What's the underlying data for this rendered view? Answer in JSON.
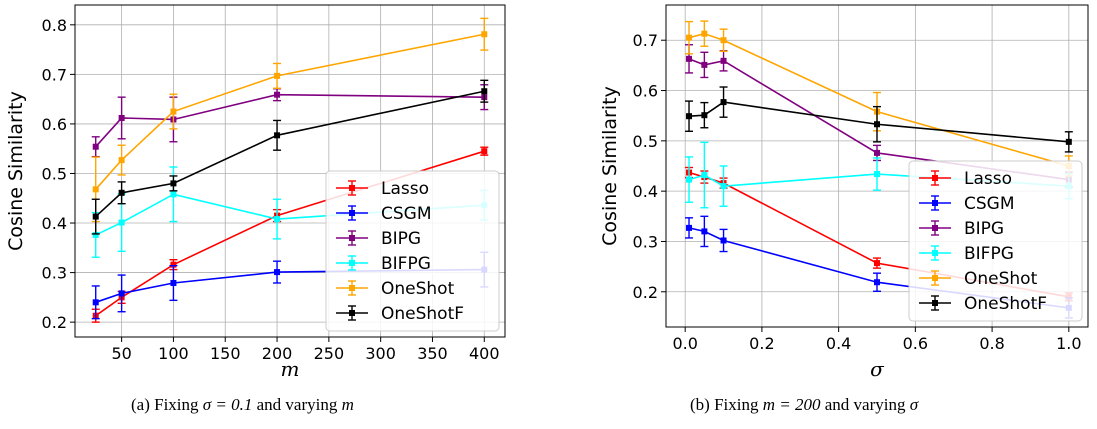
{
  "chart_data": [
    {
      "type": "line",
      "xlabel": "m",
      "ylabel": "Cosine Similarity",
      "xlim": [
        5,
        420
      ],
      "ylim": [
        0.17,
        0.84
      ],
      "xticks": [
        50,
        100,
        150,
        200,
        250,
        300,
        350,
        400
      ],
      "yticks": [
        0.2,
        0.3,
        0.4,
        0.5,
        0.6,
        0.7,
        0.8
      ],
      "xtick_labels": [
        "50",
        "100",
        "150",
        "200",
        "250",
        "300",
        "350",
        "400"
      ],
      "ytick_labels": [
        "0.2",
        "0.3",
        "0.4",
        "0.5",
        "0.6",
        "0.7",
        "0.8"
      ],
      "grid": true,
      "legend_position": "lower-right",
      "x": [
        25,
        50,
        100,
        200,
        400
      ],
      "series": [
        {
          "name": "Lasso",
          "color": "#ff0000",
          "values": [
            0.213,
            0.25,
            0.316,
            0.415,
            0.545
          ],
          "err": [
            0.013,
            0.012,
            0.01,
            0.012,
            0.008
          ]
        },
        {
          "name": "CSGM",
          "color": "#0000ff",
          "values": [
            0.24,
            0.258,
            0.279,
            0.301,
            0.306
          ],
          "err": [
            0.033,
            0.037,
            0.035,
            0.022,
            0.035
          ]
        },
        {
          "name": "BIPG",
          "color": "#800080",
          "values": [
            0.554,
            0.612,
            0.609,
            0.659,
            0.654
          ],
          "err": [
            0.02,
            0.042,
            0.045,
            0.012,
            0.025
          ]
        },
        {
          "name": "BIFPG",
          "color": "#00ffff",
          "values": [
            0.376,
            0.401,
            0.458,
            0.408,
            0.436
          ],
          "err": [
            0.045,
            0.058,
            0.055,
            0.04,
            0.03
          ]
        },
        {
          "name": "OneShot",
          "color": "#ffa500",
          "values": [
            0.468,
            0.527,
            0.625,
            0.697,
            0.781
          ],
          "err": [
            0.065,
            0.03,
            0.035,
            0.025,
            0.032
          ]
        },
        {
          "name": "OneShotF",
          "color": "#000000",
          "values": [
            0.413,
            0.461,
            0.48,
            0.577,
            0.666
          ],
          "err": [
            0.035,
            0.022,
            0.015,
            0.03,
            0.022
          ]
        }
      ]
    },
    {
      "type": "line",
      "xlabel": "σ",
      "ylabel": "Cosine Similarity",
      "xlim": [
        -0.05,
        1.05
      ],
      "ylim": [
        0.13,
        0.77
      ],
      "xticks": [
        0.0,
        0.2,
        0.4,
        0.6,
        0.8,
        1.0
      ],
      "yticks": [
        0.2,
        0.3,
        0.4,
        0.5,
        0.6,
        0.7
      ],
      "xtick_labels": [
        "0.0",
        "0.2",
        "0.4",
        "0.6",
        "0.8",
        "1.0"
      ],
      "ytick_labels": [
        "0.2",
        "0.3",
        "0.4",
        "0.5",
        "0.6",
        "0.7"
      ],
      "grid": true,
      "legend_position": "lower-right",
      "x": [
        0.01,
        0.05,
        0.1,
        0.5,
        1.0
      ],
      "series": [
        {
          "name": "Lasso",
          "color": "#ff0000",
          "values": [
            0.437,
            0.428,
            0.416,
            0.257,
            0.19
          ],
          "err": [
            0.01,
            0.012,
            0.01,
            0.01,
            0.008
          ]
        },
        {
          "name": "CSGM",
          "color": "#0000ff",
          "values": [
            0.327,
            0.32,
            0.302,
            0.219,
            0.168
          ],
          "err": [
            0.02,
            0.03,
            0.022,
            0.018,
            0.02
          ]
        },
        {
          "name": "BIPG",
          "color": "#800080",
          "values": [
            0.663,
            0.651,
            0.659,
            0.476,
            0.423
          ],
          "err": [
            0.028,
            0.025,
            0.02,
            0.015,
            0.015
          ]
        },
        {
          "name": "BIFPG",
          "color": "#00ffff",
          "values": [
            0.423,
            0.432,
            0.41,
            0.434,
            0.41
          ],
          "err": [
            0.045,
            0.065,
            0.04,
            0.032,
            0.025
          ]
        },
        {
          "name": "OneShot",
          "color": "#ffa500",
          "values": [
            0.705,
            0.713,
            0.7,
            0.558,
            0.45
          ],
          "err": [
            0.032,
            0.025,
            0.022,
            0.038,
            0.02
          ]
        },
        {
          "name": "OneShotF",
          "color": "#000000",
          "values": [
            0.549,
            0.551,
            0.577,
            0.533,
            0.498
          ],
          "err": [
            0.03,
            0.025,
            0.03,
            0.035,
            0.02
          ]
        }
      ]
    }
  ],
  "captions": [
    {
      "prefix": "(a) Fixing ",
      "math": "σ = 0.1",
      "middle": " and varying ",
      "var": "m"
    },
    {
      "prefix": "(b) Fixing ",
      "math": "m = 200",
      "middle": " and varying ",
      "var": "σ"
    }
  ]
}
